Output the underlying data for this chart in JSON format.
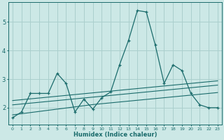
{
  "xlabel": "Humidex (Indice chaleur)",
  "bg_color": "#cce8e6",
  "grid_color": "#aacfcd",
  "line_color": "#1a6b6b",
  "x_values": [
    0,
    1,
    2,
    3,
    4,
    5,
    6,
    7,
    8,
    9,
    10,
    11,
    12,
    13,
    14,
    15,
    16,
    17,
    18,
    19,
    20,
    21,
    22,
    23
  ],
  "series1": [
    1.65,
    1.85,
    2.5,
    2.5,
    2.5,
    3.2,
    2.85,
    1.85,
    2.3,
    1.95,
    2.35,
    2.55,
    3.5,
    4.35,
    5.4,
    5.35,
    4.2,
    2.85,
    3.5,
    3.3,
    2.5,
    2.1,
    2.0,
    2.0
  ],
  "trend1": [
    2.1,
    2.13,
    2.16,
    2.19,
    2.22,
    2.25,
    2.28,
    2.31,
    2.34,
    2.37,
    2.4,
    2.43,
    2.46,
    2.49,
    2.52,
    2.55,
    2.58,
    2.61,
    2.64,
    2.67,
    2.7,
    2.73,
    2.76,
    2.79
  ],
  "trend2": [
    2.25,
    2.28,
    2.31,
    2.34,
    2.37,
    2.4,
    2.43,
    2.46,
    2.49,
    2.52,
    2.55,
    2.58,
    2.61,
    2.64,
    2.67,
    2.7,
    2.73,
    2.76,
    2.79,
    2.82,
    2.85,
    2.88,
    2.91,
    2.94
  ],
  "trend3": [
    1.75,
    1.79,
    1.83,
    1.87,
    1.91,
    1.95,
    1.99,
    2.03,
    2.07,
    2.11,
    2.14,
    2.17,
    2.2,
    2.23,
    2.26,
    2.29,
    2.32,
    2.35,
    2.38,
    2.41,
    2.44,
    2.47,
    2.5,
    2.53
  ],
  "ylim": [
    1.4,
    5.7
  ],
  "yticks": [
    2,
    3,
    4,
    5
  ],
  "xlim": [
    -0.5,
    23.5
  ]
}
